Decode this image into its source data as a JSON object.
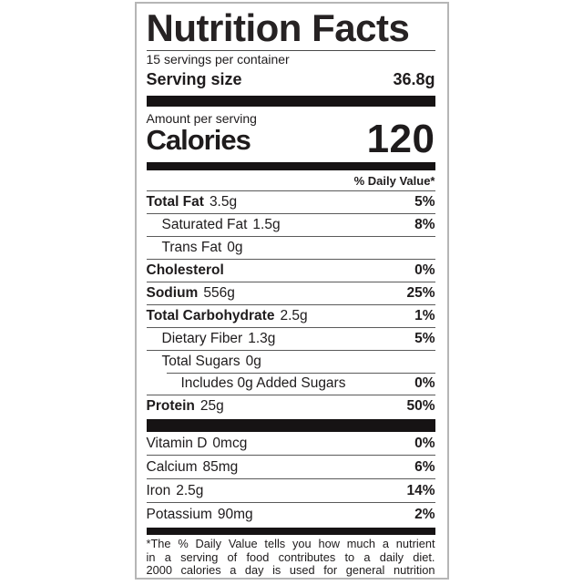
{
  "label": {
    "title": "Nutrition Facts",
    "servings_per_container": "15 servings per container",
    "serving_size_label": "Serving size",
    "serving_size_value": "36.8g",
    "amount_per_serving": "Amount per serving",
    "calories_label": "Calories",
    "calories_value": "120",
    "daily_value_header": "% Daily Value*",
    "nutrients": [
      {
        "name": "Total Fat",
        "amount": "3.5g",
        "dv": "5%"
      },
      {
        "name": "Saturated Fat",
        "amount": "1.5g",
        "dv": "8%"
      },
      {
        "name": "Trans Fat",
        "amount": "0g",
        "dv": ""
      },
      {
        "name": "Cholesterol",
        "amount": "",
        "dv": "0%"
      },
      {
        "name": "Sodium",
        "amount": "556g",
        "dv": "25%"
      },
      {
        "name": "Total Carbohydrate",
        "amount": "2.5g",
        "dv": "1%"
      },
      {
        "name": "Dietary Fiber",
        "amount": "1.3g",
        "dv": "5%"
      },
      {
        "name": "Total Sugars",
        "amount": "0g",
        "dv": ""
      },
      {
        "name": "Includes 0g Added Sugars",
        "amount": "",
        "dv": "0%"
      },
      {
        "name": "Protein",
        "amount": "25g",
        "dv": "50%"
      }
    ],
    "vitamins": [
      {
        "name": "Vitamin D",
        "amount": "0mcg",
        "dv": "0%"
      },
      {
        "name": "Calcium",
        "amount": "85mg",
        "dv": "6%"
      },
      {
        "name": "Iron",
        "amount": "2.5g",
        "dv": "14%"
      },
      {
        "name": "Potassium",
        "amount": "90mg",
        "dv": "2%"
      }
    ],
    "footnote_lines": [
      "*The % Daily Value tells you how much a nutrient",
      "in a serving of food contributes to a daily diet.",
      "2000 calories a day is used for general nutrition"
    ],
    "colors": {
      "text": "#1e1b1c",
      "bar": "#161314",
      "hairline": "#5a5a5a",
      "border": "#b6b6b6",
      "background": "#ffffff"
    }
  }
}
